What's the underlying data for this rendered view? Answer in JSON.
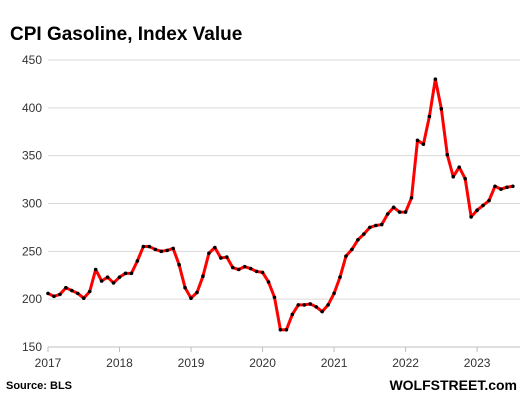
{
  "chart_data": {
    "type": "line",
    "title": "CPI Gasoline,  Index Value",
    "source": "Source: BLS",
    "brand": "WOLFSTREET.com",
    "ylim": [
      150,
      450
    ],
    "xlim": [
      2017.0,
      2023.6
    ],
    "y_ticks": [
      150,
      200,
      250,
      300,
      350,
      400,
      450
    ],
    "x_ticks": [
      2017,
      2018,
      2019,
      2020,
      2021,
      2022,
      2023
    ],
    "grid": true,
    "line_color": "#ff0000",
    "marker_color": "#000000",
    "series": [
      {
        "x": [
          "2017-01",
          "2017-02",
          "2017-03",
          "2017-04",
          "2017-05",
          "2017-06",
          "2017-07",
          "2017-08",
          "2017-09",
          "2017-10",
          "2017-11",
          "2017-12",
          "2018-01",
          "2018-02",
          "2018-03",
          "2018-04",
          "2018-05",
          "2018-06",
          "2018-07",
          "2018-08",
          "2018-09",
          "2018-10",
          "2018-11",
          "2018-12",
          "2019-01",
          "2019-02",
          "2019-03",
          "2019-04",
          "2019-05",
          "2019-06",
          "2019-07",
          "2019-08",
          "2019-09",
          "2019-10",
          "2019-11",
          "2019-12",
          "2020-01",
          "2020-02",
          "2020-03",
          "2020-04",
          "2020-05",
          "2020-06",
          "2020-07",
          "2020-08",
          "2020-09",
          "2020-10",
          "2020-11",
          "2020-12",
          "2021-01",
          "2021-02",
          "2021-03",
          "2021-04",
          "2021-05",
          "2021-06",
          "2021-07",
          "2021-08",
          "2021-09",
          "2021-10",
          "2021-11",
          "2021-12",
          "2022-01",
          "2022-02",
          "2022-03",
          "2022-04",
          "2022-05",
          "2022-06",
          "2022-07",
          "2022-08",
          "2022-09",
          "2022-10",
          "2022-11",
          "2022-12",
          "2023-01",
          "2023-02",
          "2023-03",
          "2023-04",
          "2023-05",
          "2023-06",
          "2023-07"
        ],
        "values": [
          206,
          203,
          205,
          212,
          209,
          206,
          201,
          208,
          231,
          219,
          223,
          217,
          223,
          227,
          227,
          240,
          255,
          255,
          252,
          250,
          251,
          253,
          236,
          212,
          201,
          207,
          224,
          248,
          254,
          243,
          244,
          233,
          231,
          234,
          232,
          229,
          228,
          218,
          202,
          168,
          168,
          184,
          194,
          194,
          195,
          192,
          187,
          194,
          206,
          223,
          245,
          252,
          262,
          268,
          275,
          277,
          278,
          289,
          296,
          291,
          291,
          306,
          366,
          362,
          391,
          430,
          399,
          351,
          328,
          338,
          326,
          286,
          293,
          298,
          303,
          318,
          315,
          317,
          318
        ]
      }
    ]
  }
}
